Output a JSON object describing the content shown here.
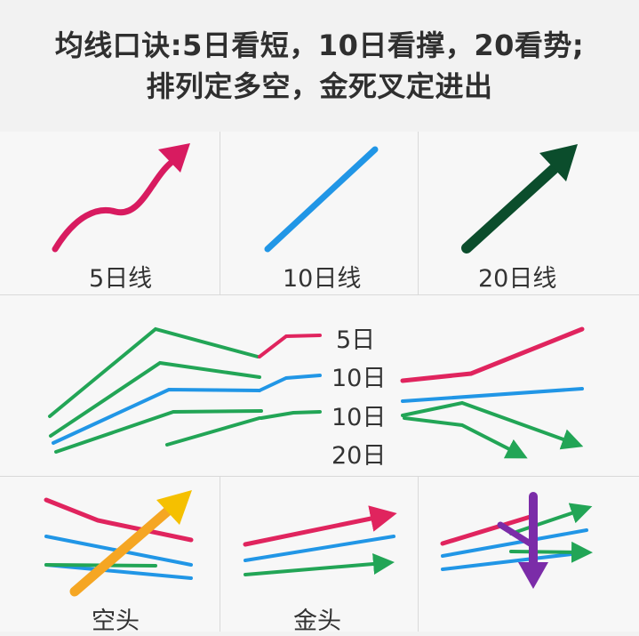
{
  "title": {
    "line1": "均线口诀:5日看短，10日看撑，20看势;",
    "line2": "排列定多空，金死叉定进出"
  },
  "top_row": [
    {
      "label": "5日线",
      "icon": "wavy-arrow-icon",
      "color": "#d81b60"
    },
    {
      "label": "10日线",
      "icon": "straight-line-icon",
      "color": "#2196e6"
    },
    {
      "label": "20日线",
      "icon": "big-arrow-icon",
      "color": "#0b4d2c"
    }
  ],
  "middle_row": {
    "labels": [
      "5日",
      "10日",
      "10日",
      "20日"
    ],
    "colors": {
      "red": "#e0245e",
      "blue": "#2196e6",
      "green": "#22a556"
    }
  },
  "bottom_row": [
    {
      "label": "空头",
      "icon": "yellow-up-arrow-icon"
    },
    {
      "label": "金头",
      "icon": "three-arrows-icon"
    },
    {
      "label": "",
      "icon": "purple-down-arrow-icon"
    }
  ]
}
